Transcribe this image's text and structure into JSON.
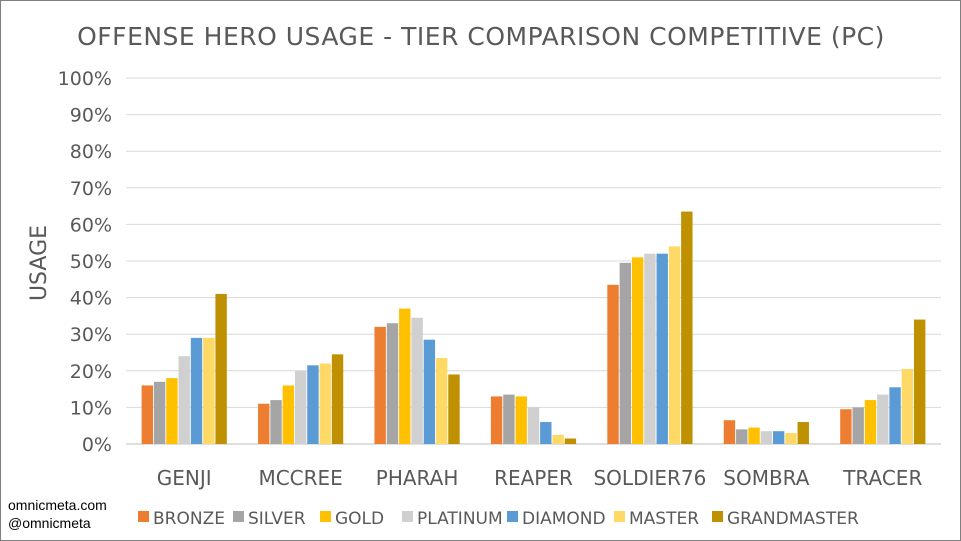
{
  "credits": {
    "site": "omnicmeta.com",
    "handle": "@omnicmeta"
  },
  "chart_data": {
    "type": "bar",
    "title": "OFFENSE HERO USAGE - TIER COMPARISON COMPETITIVE (PC)",
    "xlabel": "",
    "ylabel": "USAGE",
    "ylim": [
      0,
      100
    ],
    "yticks": [
      "0%",
      "10%",
      "20%",
      "30%",
      "40%",
      "50%",
      "60%",
      "70%",
      "80%",
      "90%",
      "100%"
    ],
    "grid": true,
    "legend_position": "bottom",
    "categories": [
      "GENJI",
      "MCCREE",
      "PHARAH",
      "REAPER",
      "SOLDIER76",
      "SOMBRA",
      "TRACER"
    ],
    "series": [
      {
        "name": "BRONZE",
        "color": "#ed7d31",
        "values": [
          16,
          11,
          32,
          13,
          43.5,
          6.5,
          9.5
        ]
      },
      {
        "name": "SILVER",
        "color": "#a5a5a5",
        "values": [
          17,
          12,
          33,
          13.5,
          49.5,
          4,
          10
        ]
      },
      {
        "name": "GOLD",
        "color": "#ffc000",
        "values": [
          18,
          16,
          37,
          13,
          51,
          4.5,
          12
        ]
      },
      {
        "name": "PLATINUM",
        "color": "#d0d0d0",
        "values": [
          24,
          20,
          34.5,
          10,
          52,
          3.5,
          13.5
        ]
      },
      {
        "name": "DIAMOND",
        "color": "#5b9bd5",
        "values": [
          29,
          21.5,
          28.5,
          6,
          52,
          3.5,
          15.5
        ]
      },
      {
        "name": "MASTER",
        "color": "#ffd966",
        "values": [
          29,
          22,
          23.5,
          2.5,
          54,
          3,
          20.5
        ]
      },
      {
        "name": "GRANDMASTER",
        "color": "#bf9000",
        "values": [
          41,
          24.5,
          19,
          1.5,
          63.5,
          6,
          34
        ]
      }
    ]
  }
}
